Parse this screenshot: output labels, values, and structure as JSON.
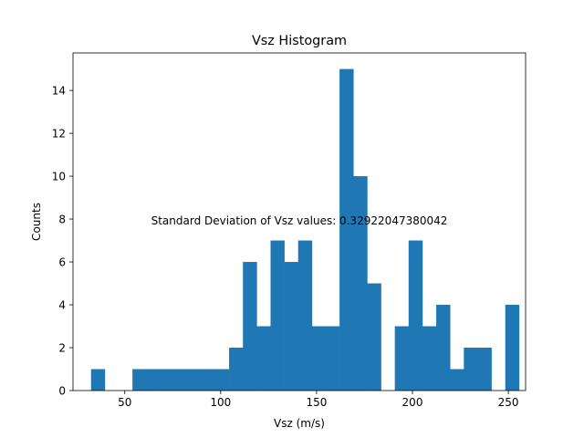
{
  "chart_data": {
    "type": "bar",
    "title": "Vsz Histogram",
    "xlabel": "Vsz (m/s)",
    "ylabel": "Counts",
    "annotation": "Standard Deviation of Vsz values: 0.32922047380042",
    "bar_color": "#1f77b4",
    "bins": {
      "start": 32.4,
      "width": 7.2,
      "counts": [
        1,
        0,
        0,
        1,
        1,
        1,
        1,
        1,
        1,
        1,
        2,
        6,
        3,
        7,
        6,
        7,
        3,
        3,
        15,
        10,
        5,
        0,
        3,
        7,
        3,
        4,
        1,
        2,
        2,
        0,
        4
      ]
    },
    "xlim": [
      23,
      259
    ],
    "ylim": [
      0,
      15.75
    ],
    "xticks": [
      50,
      100,
      150,
      200,
      250
    ],
    "yticks": [
      0,
      2,
      4,
      6,
      8,
      10,
      12,
      14
    ],
    "grid": false
  }
}
